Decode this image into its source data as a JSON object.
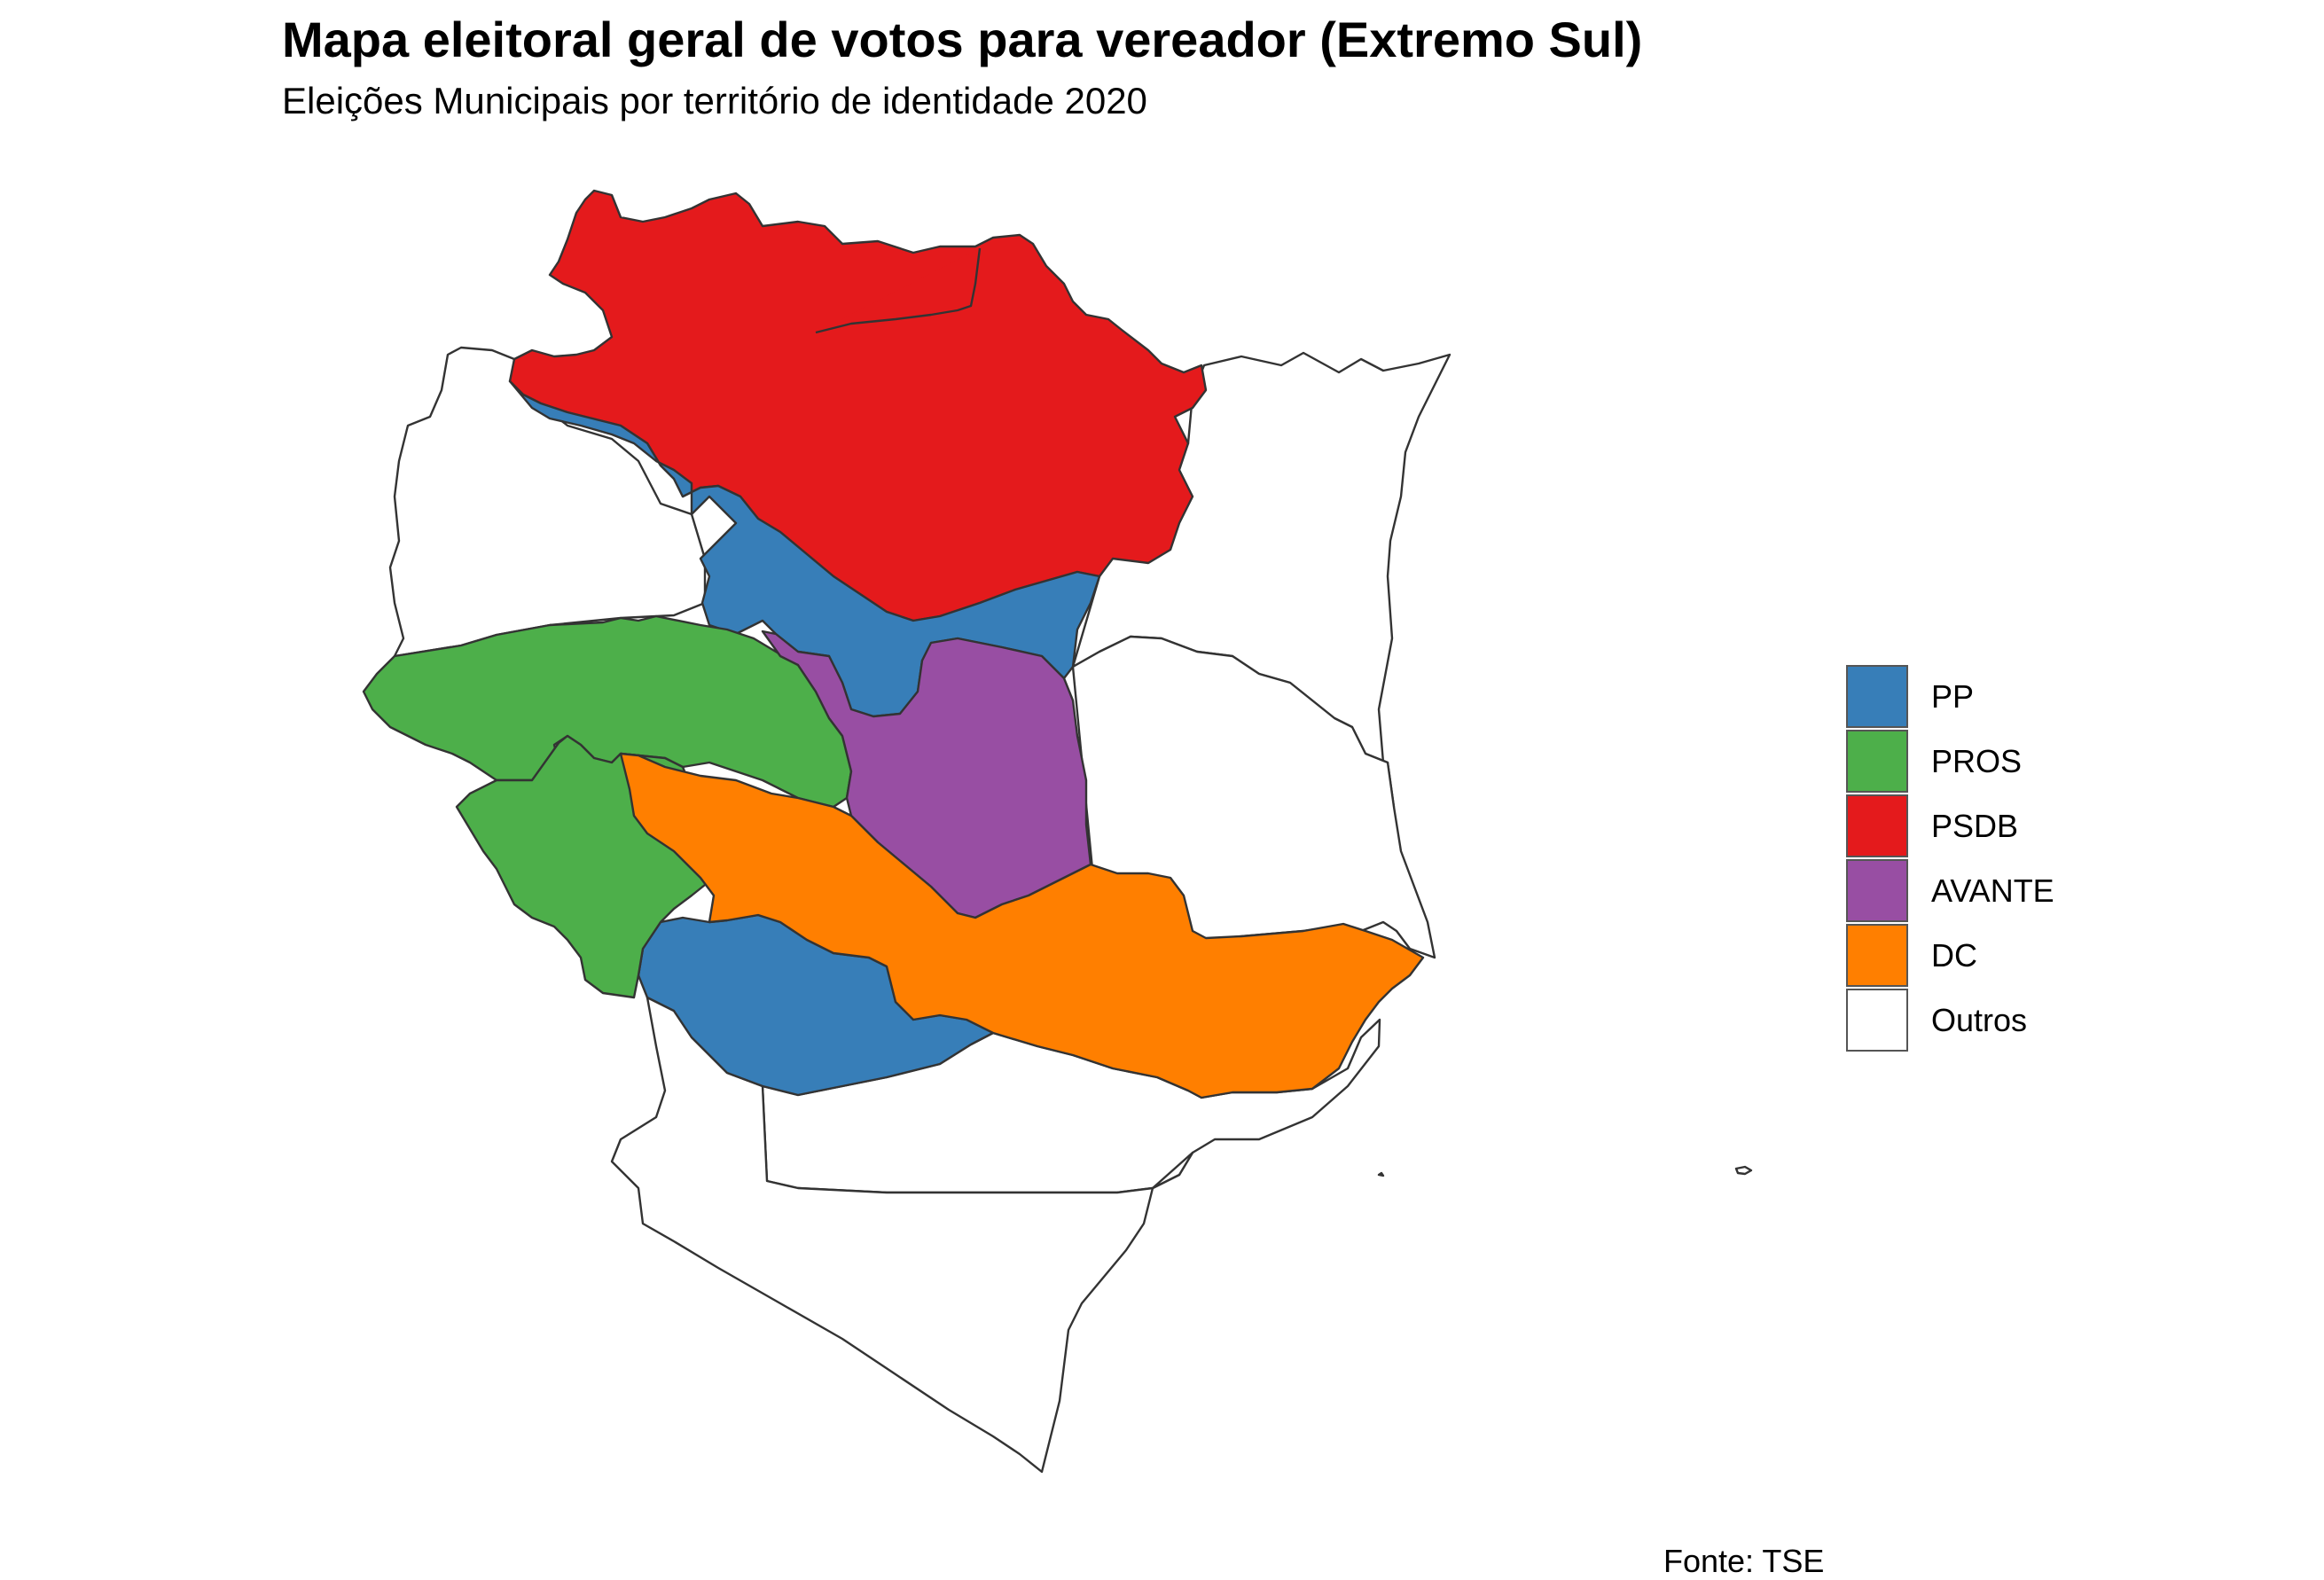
{
  "title": "Mapa eleitoral geral de votos para vereador (Extremo Sul)",
  "subtitle": "Eleições Municipais por território de identidade 2020",
  "caption": "Fonte: TSE",
  "colors": {
    "PP": "#377EB8",
    "PROS": "#4DAF4A",
    "PSDB": "#E41A1C",
    "AVANTE": "#984EA3",
    "DC": "#FF7F00",
    "Outros": "#FFFFFF",
    "border": "#333333"
  },
  "legend": {
    "items": [
      {
        "label": "PP",
        "color": "#377EB8"
      },
      {
        "label": "PROS",
        "color": "#4DAF4A"
      },
      {
        "label": "PSDB",
        "color": "#E41A1C"
      },
      {
        "label": "AVANTE",
        "color": "#984EA3"
      },
      {
        "label": "DC",
        "color": "#FF7F00"
      },
      {
        "label": "Outros",
        "color": "#FFFFFF"
      }
    ]
  }
}
